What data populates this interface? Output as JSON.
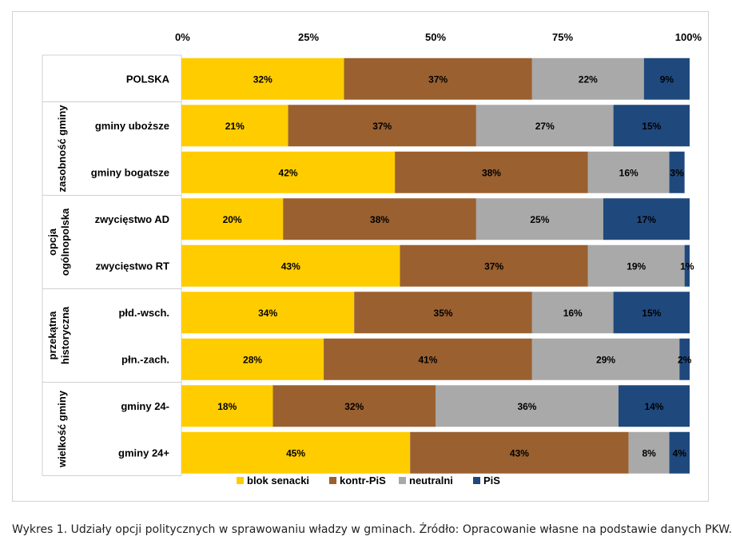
{
  "chart_data": {
    "type": "bar",
    "orientation": "horizontal",
    "stacked": true,
    "percent": true,
    "xlim": [
      0,
      100
    ],
    "x_ticks": [
      "0%",
      "25%",
      "50%",
      "75%",
      "100%"
    ],
    "categories": [
      "POLSKA",
      "gminy uboższe",
      "gminy bogatsze",
      "zwycięstwo AD",
      "zwycięstwo RT",
      "płd.-wsch.",
      "płn.-zach.",
      "gminy 24-",
      "gminy 24+"
    ],
    "groups": [
      {
        "label": "",
        "rows": [
          0
        ]
      },
      {
        "label": "zasobność gminy",
        "rows": [
          1,
          2
        ]
      },
      {
        "label": "opcja ogólnopolska",
        "rows": [
          3,
          4
        ]
      },
      {
        "label": "przekątna historyczna",
        "rows": [
          5,
          6
        ]
      },
      {
        "label": "wielkość gminy",
        "rows": [
          7,
          8
        ]
      }
    ],
    "series": [
      {
        "name": "blok senacki",
        "color": "#FFCC00",
        "values": [
          32,
          21,
          42,
          20,
          43,
          34,
          28,
          18,
          45
        ],
        "labels": [
          "32%",
          "21%",
          "42%",
          "20%",
          "43%",
          "34%",
          "28%",
          "18%",
          "45%"
        ]
      },
      {
        "name": "kontr-PiS",
        "color": "#9A6030",
        "values": [
          37,
          37,
          38,
          38,
          37,
          35,
          41,
          32,
          43
        ],
        "labels": [
          "37%",
          "37%",
          "38%",
          "38%",
          "37%",
          "35%",
          "41%",
          "32%",
          "43%"
        ]
      },
      {
        "name": "neutralni",
        "color": "#A9A9A9",
        "values": [
          22,
          27,
          16,
          25,
          19,
          16,
          29,
          36,
          8
        ],
        "labels": [
          "22%",
          "27%",
          "16%",
          "25%",
          "19%",
          "16%",
          "29%",
          "36%",
          "8%"
        ]
      },
      {
        "name": "PiS",
        "color": "#1F497D",
        "values": [
          9,
          15,
          3,
          17,
          1,
          15,
          2,
          14,
          4
        ],
        "labels": [
          "9%",
          "15%",
          "3%",
          "17%",
          "1%",
          "15%",
          "2%",
          "14%",
          "4%"
        ]
      }
    ],
    "legend_position": "bottom",
    "grid": false
  },
  "caption": "Wykres 1. Udziały opcji politycznych w sprawowaniu władzy w gminach. Źródło: Opracowanie własne na podstawie danych PKW."
}
